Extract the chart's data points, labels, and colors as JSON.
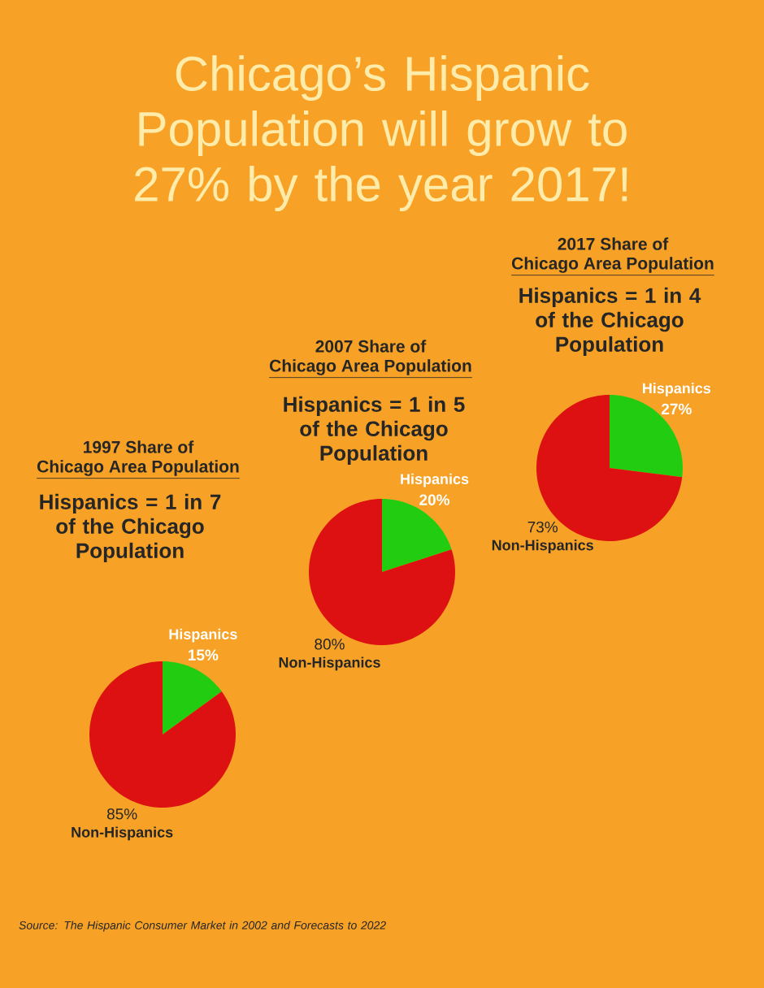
{
  "chart_data": [
    {
      "type": "pie",
      "title": "1997 Share of",
      "subtitle": "Chicago Area Population",
      "categories": [
        "Hispanics",
        "Non-Hispanics"
      ],
      "values": [
        15,
        85
      ],
      "value_labels": [
        "15%",
        "85%"
      ],
      "colors": [
        "#22cc11",
        "#dd1111"
      ],
      "annotations": [
        "Hispanics = 1 in 7 of the Chicago Population",
        "Chicago’s Hispanic Population will grow to 27% by the year 2017!",
        "Source: The Hispanic Consumer Market in 2002 and Forecasts to 2022"
      ]
    },
    {
      "type": "pie",
      "title": "2007 Share of",
      "subtitle": "Chicago Area Population",
      "categories": [
        "Hispanics",
        "Non-Hispanics"
      ],
      "values": [
        20,
        80
      ],
      "value_labels": [
        "20%",
        "80%"
      ],
      "colors": [
        "#22cc11",
        "#dd1111"
      ],
      "annotations": [
        "Hispanics = 1 in 5 of the Chicago Population"
      ]
    },
    {
      "type": "pie",
      "title": "2017 Share of",
      "subtitle": "Chicago Area Population",
      "categories": [
        "Hispanics",
        "Non-Hispanics"
      ],
      "values": [
        27,
        73
      ],
      "value_labels": [
        "27%",
        "73%"
      ],
      "colors": [
        "#22cc11",
        "#dd1111"
      ],
      "annotations": [
        "Hispanics = 1 in 4 of the Chicago Population"
      ]
    }
  ]
}
